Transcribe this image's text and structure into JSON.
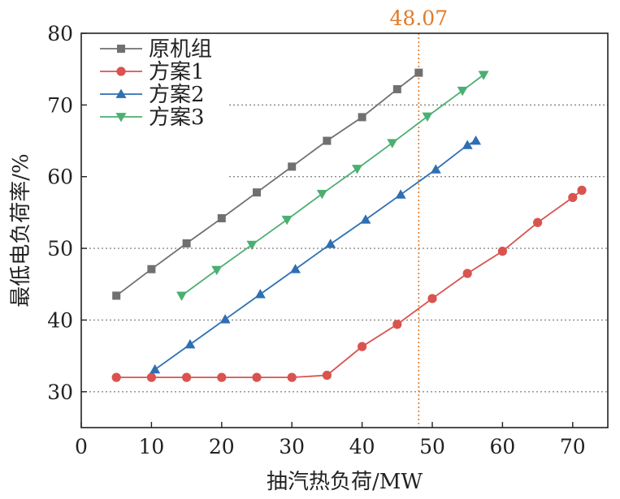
{
  "chart_data": {
    "type": "line",
    "xlabel": "抽汽热负荷/MW",
    "ylabel": "最低电负荷率/%",
    "xlim": [
      0,
      75
    ],
    "ylim": [
      25,
      80
    ],
    "xticks": [
      0,
      10,
      20,
      30,
      40,
      50,
      60,
      70
    ],
    "yticks": [
      30,
      40,
      50,
      60,
      70,
      80
    ],
    "grid": "horizontal dotted",
    "legend_position": "top-left",
    "series": [
      {
        "name": "原机组",
        "color": "#707070",
        "marker": "square",
        "x": [
          5,
          10,
          15,
          20,
          25,
          30,
          35,
          40,
          45,
          48.07
        ],
        "y": [
          43.4,
          47.1,
          50.7,
          54.2,
          57.8,
          61.4,
          65.0,
          68.3,
          72.2,
          74.5
        ]
      },
      {
        "name": "方案1",
        "color": "#d9534f",
        "marker": "circle",
        "x": [
          5,
          10,
          15,
          20,
          25,
          30,
          35,
          40,
          45,
          50,
          55,
          60,
          65,
          70,
          71.3
        ],
        "y": [
          32.0,
          32.0,
          32.0,
          32.0,
          32.0,
          32.0,
          32.3,
          36.3,
          39.4,
          43.0,
          46.5,
          49.6,
          53.6,
          57.1,
          58.1
        ]
      },
      {
        "name": "方案2",
        "color": "#2f6fb3",
        "marker": "triangle-up",
        "x": [
          10.5,
          15.5,
          20.5,
          25.5,
          30.5,
          35.5,
          40.5,
          45.5,
          50.5,
          55.0,
          56.2
        ],
        "y": [
          33.1,
          36.6,
          40.1,
          43.6,
          47.1,
          50.6,
          54.0,
          57.5,
          61.0,
          64.4,
          65.0
        ]
      },
      {
        "name": "方案3",
        "color": "#4caf72",
        "marker": "triangle-down",
        "x": [
          14.3,
          19.3,
          24.3,
          29.3,
          34.3,
          39.3,
          44.3,
          49.3,
          54.3,
          57.3
        ],
        "y": [
          43.4,
          47.0,
          50.5,
          54.0,
          57.6,
          61.1,
          64.7,
          68.4,
          72.0,
          74.2
        ]
      }
    ],
    "annotations": [
      {
        "type": "vline",
        "x": 48.07,
        "label": "48.07",
        "color": "#e07b2a",
        "style": "dotted"
      }
    ]
  }
}
